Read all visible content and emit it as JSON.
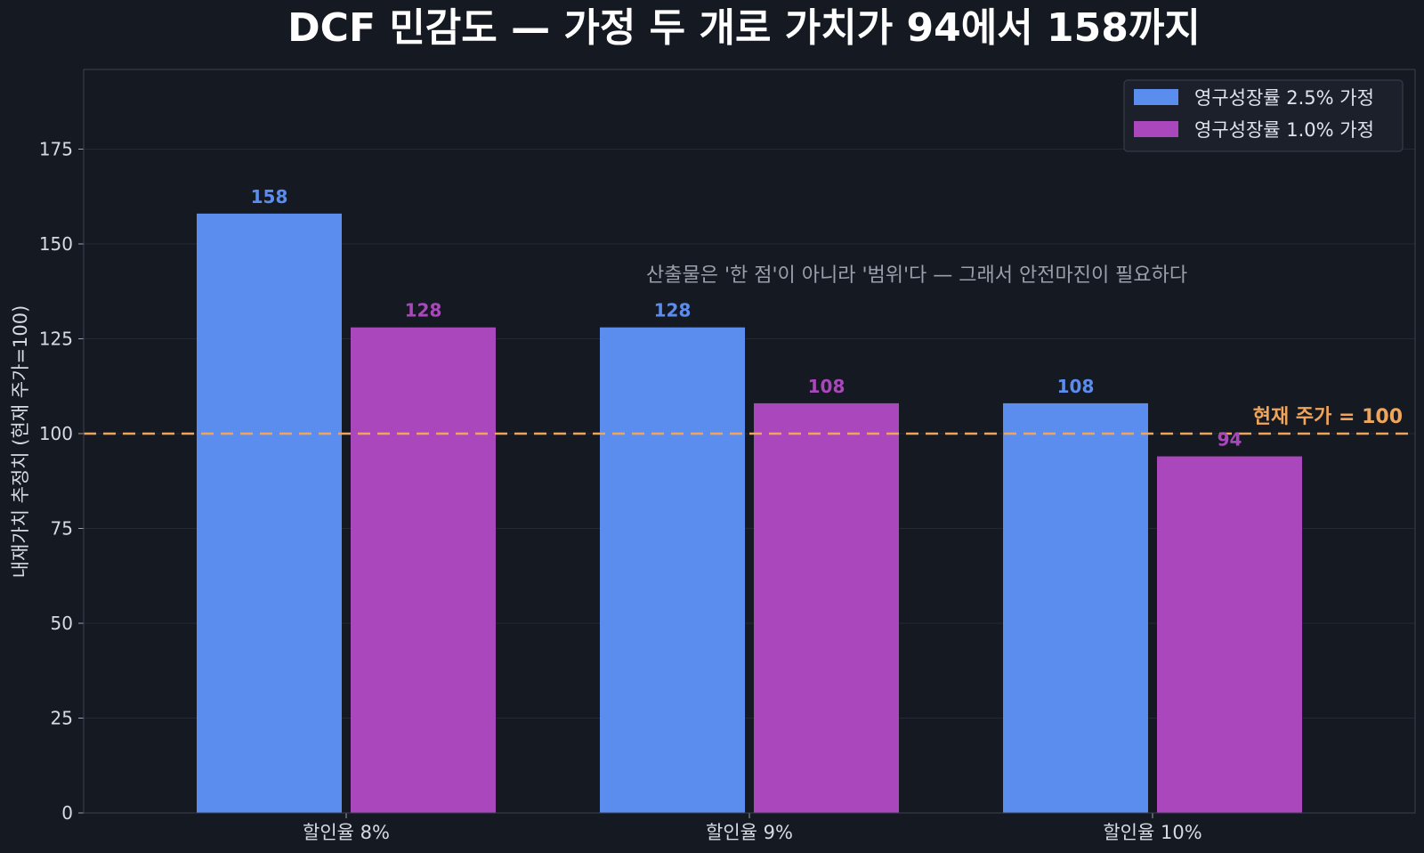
{
  "colors": {
    "background": "#151922",
    "plot_border": "#3a4150",
    "grid": "#232a36",
    "text": "#d6dae2",
    "series_a": "#5b8def",
    "series_b": "#aa47bc",
    "reference": "#f0a55a",
    "annotation": "#9aa0ab"
  },
  "chart_data": {
    "type": "bar",
    "title": "DCF 민감도 — 가정 두 개로 가치가 94에서 158까지",
    "xlabel": "",
    "ylabel": "내재가치 추정치 (현재 주가=100)",
    "categories": [
      "할인율 8%",
      "할인율 9%",
      "할인율 10%"
    ],
    "series": [
      {
        "name": "영구성장률 2.5% 가정",
        "values": [
          158,
          128,
          108
        ],
        "color": "#5b8def"
      },
      {
        "name": "영구성장률 1.0% 가정",
        "values": [
          128,
          108,
          94
        ],
        "color": "#aa47bc"
      }
    ],
    "ylim": [
      0,
      196
    ],
    "yticks": [
      0,
      25,
      50,
      75,
      100,
      125,
      150,
      175
    ],
    "grid": true,
    "legend_position": "top-right",
    "reference_line": {
      "value": 100,
      "label": "현재 주가 = 100",
      "style": "dashed"
    },
    "annotation": "산출물은 '한 점'이 아니라 '범위'다 — 그래서 안전마진이 필요하다"
  }
}
